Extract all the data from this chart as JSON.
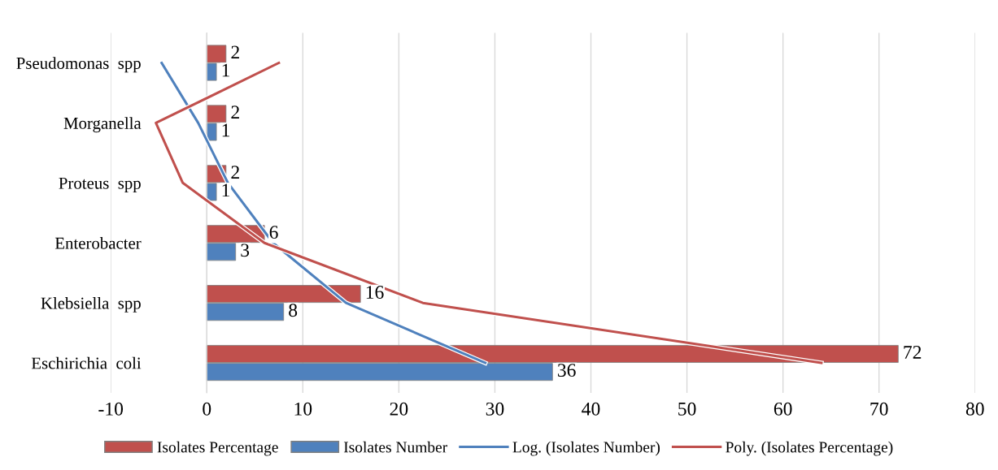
{
  "chart_data": {
    "type": "bar",
    "orientation": "horizontal",
    "categories": [
      "Pseudomonas  spp",
      "Morganella",
      "Proteus  spp",
      "Enterobacter",
      "Klebsiella  spp",
      "Eschirichia  coli"
    ],
    "series": [
      {
        "name": "Isolates Percentage",
        "color": "#c0504d",
        "values": [
          2,
          2,
          2,
          6,
          16,
          72
        ],
        "value_labels": [
          "2",
          "2",
          "2",
          "6",
          "16",
          "72"
        ]
      },
      {
        "name": "Isolates Number",
        "color": "#4f81bd",
        "values": [
          1,
          1,
          1,
          3,
          8,
          36
        ],
        "value_labels": [
          "1",
          "1",
          "1",
          "3",
          "8",
          "36"
        ]
      },
      {
        "name": "Log. (Isolates Number)",
        "type": "line",
        "color": "#4f81bd",
        "values": [
          -4.7,
          -0.9,
          2.2,
          6.9,
          14.5,
          29
        ]
      },
      {
        "name": "Poly. (Isolates Percentage)",
        "type": "line",
        "color": "#c0504d",
        "values": [
          7.5,
          -5.3,
          -2.5,
          6,
          22.5,
          64
        ]
      }
    ],
    "xlim": [
      -10,
      80
    ],
    "xticks": [
      -10,
      0,
      10,
      20,
      30,
      40,
      50,
      60,
      70,
      80
    ],
    "grid": "x",
    "legend": "bottom"
  }
}
